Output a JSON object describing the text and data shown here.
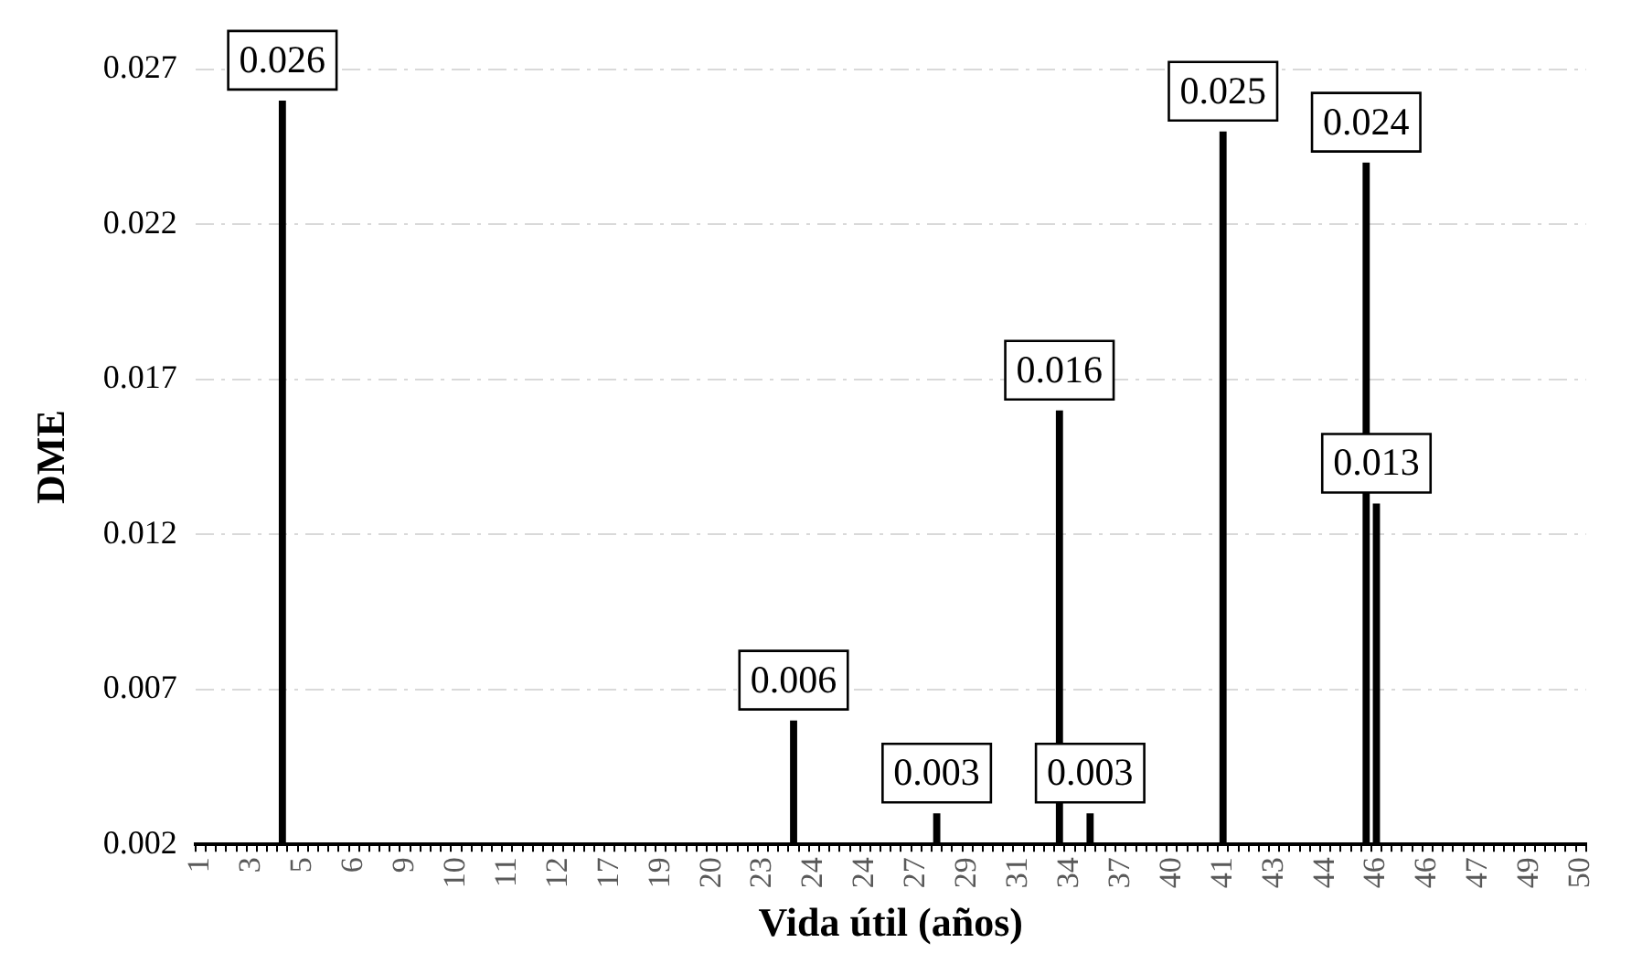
{
  "chart_data": {
    "type": "bar",
    "xlabel": "Vida útil (años)",
    "ylabel": "DME",
    "categories": [
      "1",
      null,
      null,
      null,
      null,
      "3",
      null,
      null,
      null,
      null,
      "5",
      null,
      null,
      null,
      null,
      "6",
      null,
      null,
      null,
      null,
      "9",
      null,
      null,
      null,
      null,
      "10",
      null,
      null,
      null,
      null,
      "11",
      null,
      null,
      null,
      null,
      "12",
      null,
      null,
      null,
      null,
      "17",
      null,
      null,
      null,
      null,
      "19",
      null,
      null,
      null,
      null,
      "20",
      null,
      null,
      null,
      null,
      "23",
      null,
      null,
      null,
      null,
      "24",
      null,
      null,
      null,
      null,
      "24",
      null,
      null,
      null,
      null,
      "27",
      null,
      null,
      null,
      null,
      "29",
      null,
      null,
      null,
      null,
      "31",
      null,
      null,
      null,
      null,
      "34",
      null,
      null,
      null,
      null,
      "37",
      null,
      null,
      null,
      null,
      "40",
      null,
      null,
      null,
      null,
      "41",
      null,
      null,
      null,
      null,
      "43",
      null,
      null,
      null,
      null,
      "44",
      null,
      null,
      null,
      null,
      "46",
      null,
      null,
      null,
      null,
      "46",
      null,
      null,
      null,
      null,
      "47",
      null,
      null,
      null,
      null,
      "49",
      null,
      null,
      null,
      null,
      "50"
    ],
    "values": [
      0.002,
      0.002,
      0.002,
      0.002,
      0.002,
      0.002,
      0.002,
      0.002,
      0.026,
      0.002,
      0.002,
      0.002,
      0.002,
      0.002,
      0.002,
      0.002,
      0.002,
      0.002,
      0.002,
      0.002,
      0.002,
      0.002,
      0.002,
      0.002,
      0.002,
      0.002,
      0.002,
      0.002,
      0.002,
      0.002,
      0.002,
      0.002,
      0.002,
      0.002,
      0.002,
      0.002,
      0.002,
      0.002,
      0.002,
      0.002,
      0.002,
      0.002,
      0.002,
      0.002,
      0.002,
      0.002,
      0.002,
      0.002,
      0.002,
      0.002,
      0.002,
      0.002,
      0.002,
      0.002,
      0.002,
      0.002,
      0.002,
      0.002,
      0.006,
      0.002,
      0.002,
      0.002,
      0.002,
      0.002,
      0.002,
      0.002,
      0.002,
      0.002,
      0.002,
      0.002,
      0.002,
      0.002,
      0.003,
      0.002,
      0.002,
      0.002,
      0.002,
      0.002,
      0.002,
      0.002,
      0.002,
      0.002,
      0.002,
      0.002,
      0.016,
      0.002,
      0.002,
      0.003,
      0.002,
      0.002,
      0.002,
      0.002,
      0.002,
      0.002,
      0.002,
      0.002,
      0.002,
      0.002,
      0.002,
      0.002,
      0.025,
      0.002,
      0.002,
      0.002,
      0.002,
      0.002,
      0.002,
      0.002,
      0.002,
      0.002,
      0.002,
      0.002,
      0.002,
      0.002,
      0.024,
      0.013,
      0.002,
      0.002,
      0.002,
      0.002,
      0.002,
      0.002,
      0.002,
      0.002,
      0.002,
      0.002,
      0.002,
      0.002,
      0.002,
      0.002,
      0.002,
      0.002,
      0.002,
      0.002,
      0.002,
      0.002
    ],
    "value_labels": [
      null,
      null,
      null,
      null,
      null,
      null,
      null,
      null,
      "0.026",
      null,
      null,
      null,
      null,
      null,
      null,
      null,
      null,
      null,
      null,
      null,
      null,
      null,
      null,
      null,
      null,
      null,
      null,
      null,
      null,
      null,
      null,
      null,
      null,
      null,
      null,
      null,
      null,
      null,
      null,
      null,
      null,
      null,
      null,
      null,
      null,
      null,
      null,
      null,
      null,
      null,
      null,
      null,
      null,
      null,
      null,
      null,
      null,
      null,
      "0.006",
      null,
      null,
      null,
      null,
      null,
      null,
      null,
      null,
      null,
      null,
      null,
      null,
      null,
      "0.003",
      null,
      null,
      null,
      null,
      null,
      null,
      null,
      null,
      null,
      null,
      null,
      "0.016",
      null,
      null,
      "0.003",
      null,
      null,
      null,
      null,
      null,
      null,
      null,
      null,
      null,
      null,
      null,
      null,
      "0.025",
      null,
      null,
      null,
      null,
      null,
      null,
      null,
      null,
      null,
      null,
      null,
      null,
      null,
      "0.024",
      "0.013",
      null,
      null,
      null,
      null,
      null,
      null,
      null,
      null,
      null,
      null,
      null,
      null,
      null,
      null,
      null,
      null,
      null,
      null,
      null,
      null
    ],
    "color": "#000000",
    "ylim": [
      0.002,
      0.027
    ],
    "yticks": [
      0.002,
      0.007,
      0.012,
      0.017,
      0.022,
      0.027
    ],
    "grid": "y",
    "legend": false
  }
}
